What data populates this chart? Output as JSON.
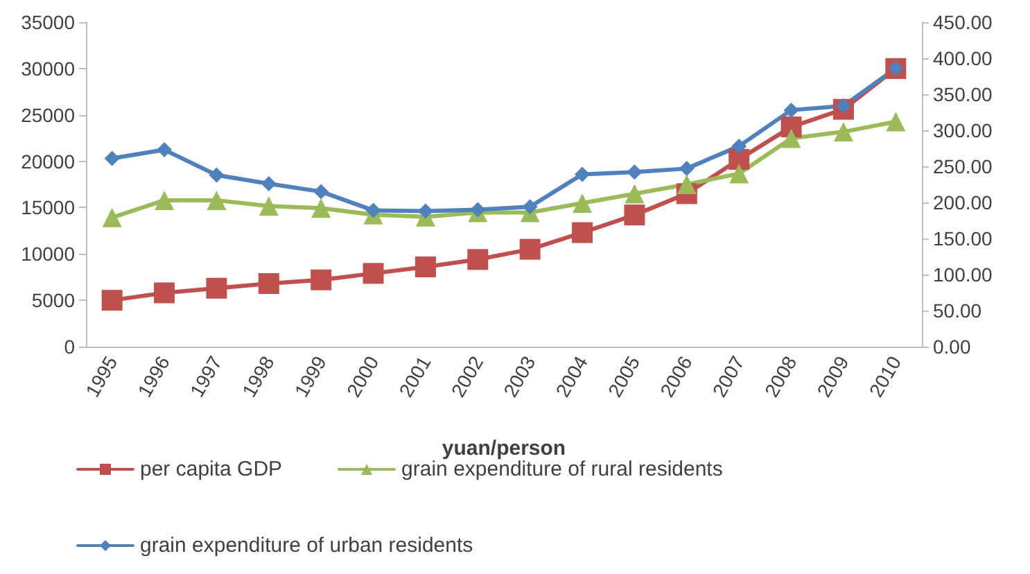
{
  "chart_data": {
    "type": "line",
    "xlabel": "yuan/person",
    "categories": [
      "1995",
      "1996",
      "1997",
      "1998",
      "1999",
      "2000",
      "2001",
      "2002",
      "2003",
      "2004",
      "2005",
      "2006",
      "2007",
      "2008",
      "2009",
      "2010"
    ],
    "series": [
      {
        "name": "per capita GDP",
        "color": "#c0504d",
        "marker": "square",
        "values": [
          5000,
          5800,
          6300,
          6800,
          7200,
          7900,
          8600,
          9400,
          10500,
          12300,
          14200,
          16500,
          20200,
          23700,
          25600,
          30000
        ]
      },
      {
        "name": "grain expenditure of rural residents",
        "color": "#9bbb59",
        "marker": "triangle",
        "axis": "y2",
        "values": [
          179,
          203,
          203,
          195,
          192,
          183,
          180,
          186,
          186,
          199,
          212,
          225,
          240,
          289,
          298,
          312
        ]
      },
      {
        "name": "grain expenditure of urban residents",
        "color": "#4f81bd",
        "marker": "diamond",
        "axis": "y2",
        "values": [
          261,
          273,
          238,
          226,
          215,
          189,
          188,
          190,
          194,
          239,
          242,
          247,
          278,
          328,
          334,
          386
        ]
      }
    ],
    "ylim": [
      0,
      35000
    ],
    "yticks": [
      0,
      5000,
      10000,
      15000,
      20000,
      25000,
      30000,
      35000
    ],
    "y2lim": [
      0,
      450
    ],
    "y2ticks": [
      {
        "value": 0,
        "label": "0.00"
      },
      {
        "value": 50,
        "label": "50.00"
      },
      {
        "value": 100,
        "label": "100.00"
      },
      {
        "value": 150,
        "label": "150.00"
      },
      {
        "value": 200,
        "label": "200.00"
      },
      {
        "value": 250,
        "label": "250.00"
      },
      {
        "value": 300,
        "label": "300.00"
      },
      {
        "value": 350,
        "label": "350.00"
      },
      {
        "value": 400,
        "label": "400.00"
      },
      {
        "value": 450,
        "label": "450.00"
      }
    ],
    "grid": false,
    "legend": "bottom",
    "line_style": "solid"
  }
}
